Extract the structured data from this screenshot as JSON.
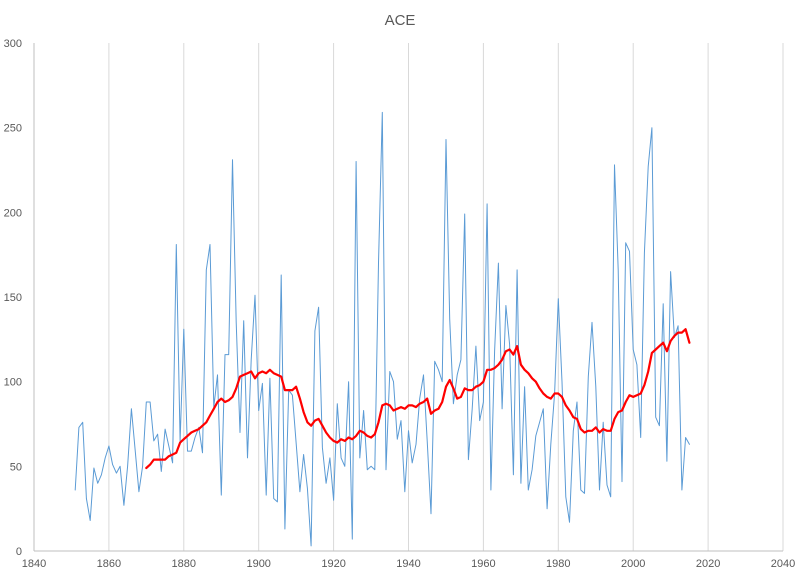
{
  "chart_data": {
    "type": "line",
    "title": "ACE",
    "xlabel": "",
    "ylabel": "",
    "xlim": [
      1840,
      2040
    ],
    "ylim": [
      0,
      300
    ],
    "x_ticks": [
      1840,
      1860,
      1880,
      1900,
      1920,
      1940,
      1960,
      1980,
      2000,
      2020,
      2040
    ],
    "y_ticks": [
      0,
      50,
      100,
      150,
      200,
      250,
      300
    ],
    "grid": "vertical",
    "legend": "none",
    "series": [
      {
        "color": "#5b9bd5",
        "style": "thin",
        "points": [
          [
            1851,
            36
          ],
          [
            1852,
            73
          ],
          [
            1853,
            76
          ],
          [
            1854,
            31
          ],
          [
            1855,
            18
          ],
          [
            1856,
            49
          ],
          [
            1857,
            40
          ],
          [
            1858,
            45
          ],
          [
            1859,
            55
          ],
          [
            1860,
            62
          ],
          [
            1861,
            51
          ],
          [
            1862,
            46
          ],
          [
            1863,
            50
          ],
          [
            1864,
            27
          ],
          [
            1865,
            50
          ],
          [
            1866,
            84
          ],
          [
            1867,
            60
          ],
          [
            1868,
            35
          ],
          [
            1869,
            50
          ],
          [
            1870,
            88
          ],
          [
            1871,
            88
          ],
          [
            1872,
            65
          ],
          [
            1873,
            69
          ],
          [
            1874,
            47
          ],
          [
            1875,
            72
          ],
          [
            1876,
            62
          ],
          [
            1877,
            52
          ],
          [
            1878,
            181
          ],
          [
            1879,
            65
          ],
          [
            1880,
            131
          ],
          [
            1881,
            59
          ],
          [
            1882,
            59
          ],
          [
            1883,
            67
          ],
          [
            1884,
            73
          ],
          [
            1885,
            58
          ],
          [
            1886,
            166
          ],
          [
            1887,
            181
          ],
          [
            1888,
            85
          ],
          [
            1889,
            104
          ],
          [
            1890,
            33
          ],
          [
            1891,
            116
          ],
          [
            1892,
            116
          ],
          [
            1893,
            231
          ],
          [
            1894,
            135
          ],
          [
            1895,
            70
          ],
          [
            1896,
            136
          ],
          [
            1897,
            55
          ],
          [
            1898,
            113
          ],
          [
            1899,
            151
          ],
          [
            1900,
            83
          ],
          [
            1901,
            99
          ],
          [
            1902,
            33
          ],
          [
            1903,
            102
          ],
          [
            1904,
            31
          ],
          [
            1905,
            29
          ],
          [
            1906,
            163
          ],
          [
            1907,
            13
          ],
          [
            1908,
            95
          ],
          [
            1909,
            92
          ],
          [
            1910,
            64
          ],
          [
            1911,
            35
          ],
          [
            1912,
            57
          ],
          [
            1913,
            37
          ],
          [
            1914,
            3
          ],
          [
            1915,
            130
          ],
          [
            1916,
            144
          ],
          [
            1917,
            61
          ],
          [
            1918,
            40
          ],
          [
            1919,
            55
          ],
          [
            1920,
            30
          ],
          [
            1921,
            87
          ],
          [
            1922,
            55
          ],
          [
            1923,
            50
          ],
          [
            1924,
            100
          ],
          [
            1925,
            7
          ],
          [
            1926,
            230
          ],
          [
            1927,
            55
          ],
          [
            1928,
            83
          ],
          [
            1929,
            48
          ],
          [
            1930,
            50
          ],
          [
            1931,
            48
          ],
          [
            1932,
            170
          ],
          [
            1933,
            259
          ],
          [
            1934,
            48
          ],
          [
            1935,
            106
          ],
          [
            1936,
            100
          ],
          [
            1937,
            66
          ],
          [
            1938,
            77
          ],
          [
            1939,
            35
          ],
          [
            1940,
            71
          ],
          [
            1941,
            52
          ],
          [
            1942,
            63
          ],
          [
            1943,
            90
          ],
          [
            1944,
            104
          ],
          [
            1945,
            65
          ],
          [
            1946,
            22
          ],
          [
            1947,
            112
          ],
          [
            1948,
            107
          ],
          [
            1949,
            100
          ],
          [
            1950,
            243
          ],
          [
            1951,
            137
          ],
          [
            1952,
            87
          ],
          [
            1953,
            104
          ],
          [
            1954,
            113
          ],
          [
            1955,
            199
          ],
          [
            1956,
            54
          ],
          [
            1957,
            84
          ],
          [
            1958,
            121
          ],
          [
            1959,
            77
          ],
          [
            1960,
            88
          ],
          [
            1961,
            205
          ],
          [
            1962,
            36
          ],
          [
            1963,
            118
          ],
          [
            1964,
            170
          ],
          [
            1965,
            84
          ],
          [
            1966,
            145
          ],
          [
            1967,
            122
          ],
          [
            1968,
            45
          ],
          [
            1969,
            166
          ],
          [
            1970,
            40
          ],
          [
            1971,
            97
          ],
          [
            1972,
            36
          ],
          [
            1973,
            48
          ],
          [
            1974,
            68
          ],
          [
            1975,
            76
          ],
          [
            1976,
            84
          ],
          [
            1977,
            25
          ],
          [
            1978,
            63
          ],
          [
            1979,
            93
          ],
          [
            1980,
            149
          ],
          [
            1981,
            100
          ],
          [
            1982,
            32
          ],
          [
            1983,
            17
          ],
          [
            1984,
            71
          ],
          [
            1985,
            88
          ],
          [
            1986,
            36
          ],
          [
            1987,
            34
          ],
          [
            1988,
            103
          ],
          [
            1989,
            135
          ],
          [
            1990,
            97
          ],
          [
            1991,
            36
          ],
          [
            1992,
            76
          ],
          [
            1993,
            39
          ],
          [
            1994,
            32
          ],
          [
            1995,
            228
          ],
          [
            1996,
            166
          ],
          [
            1997,
            41
          ],
          [
            1998,
            182
          ],
          [
            1999,
            177
          ],
          [
            2000,
            119
          ],
          [
            2001,
            110
          ],
          [
            2002,
            67
          ],
          [
            2003,
            176
          ],
          [
            2004,
            227
          ],
          [
            2005,
            250
          ],
          [
            2006,
            79
          ],
          [
            2007,
            74
          ],
          [
            2008,
            146
          ],
          [
            2009,
            53
          ],
          [
            2010,
            165
          ],
          [
            2011,
            126
          ],
          [
            2012,
            133
          ],
          [
            2013,
            36
          ],
          [
            2014,
            67
          ],
          [
            2015,
            63
          ]
        ]
      },
      {
        "color": "#ff0000",
        "style": "thick",
        "points": [
          [
            1870,
            49
          ],
          [
            1871,
            51
          ],
          [
            1872,
            54
          ],
          [
            1873,
            54
          ],
          [
            1874,
            54
          ],
          [
            1875,
            54
          ],
          [
            1876,
            56
          ],
          [
            1877,
            57
          ],
          [
            1878,
            58
          ],
          [
            1879,
            64
          ],
          [
            1880,
            66
          ],
          [
            1881,
            68
          ],
          [
            1882,
            70
          ],
          [
            1883,
            71
          ],
          [
            1884,
            72
          ],
          [
            1885,
            74
          ],
          [
            1886,
            76
          ],
          [
            1887,
            80
          ],
          [
            1888,
            84
          ],
          [
            1889,
            88
          ],
          [
            1890,
            90
          ],
          [
            1891,
            88
          ],
          [
            1892,
            89
          ],
          [
            1893,
            91
          ],
          [
            1894,
            96
          ],
          [
            1895,
            103
          ],
          [
            1896,
            104
          ],
          [
            1897,
            105
          ],
          [
            1898,
            106
          ],
          [
            1899,
            102
          ],
          [
            1900,
            105
          ],
          [
            1901,
            106
          ],
          [
            1902,
            105
          ],
          [
            1903,
            107
          ],
          [
            1904,
            105
          ],
          [
            1905,
            104
          ],
          [
            1906,
            103
          ],
          [
            1907,
            95
          ],
          [
            1908,
            95
          ],
          [
            1909,
            95
          ],
          [
            1910,
            97
          ],
          [
            1911,
            90
          ],
          [
            1912,
            82
          ],
          [
            1913,
            76
          ],
          [
            1914,
            74
          ],
          [
            1915,
            77
          ],
          [
            1916,
            78
          ],
          [
            1917,
            74
          ],
          [
            1918,
            70
          ],
          [
            1919,
            67
          ],
          [
            1920,
            65
          ],
          [
            1921,
            64
          ],
          [
            1922,
            66
          ],
          [
            1923,
            65
          ],
          [
            1924,
            67
          ],
          [
            1925,
            66
          ],
          [
            1926,
            68
          ],
          [
            1927,
            71
          ],
          [
            1928,
            70
          ],
          [
            1929,
            68
          ],
          [
            1930,
            67
          ],
          [
            1931,
            69
          ],
          [
            1932,
            76
          ],
          [
            1933,
            86
          ],
          [
            1934,
            87
          ],
          [
            1935,
            86
          ],
          [
            1936,
            83
          ],
          [
            1937,
            84
          ],
          [
            1938,
            85
          ],
          [
            1939,
            84
          ],
          [
            1940,
            86
          ],
          [
            1941,
            86
          ],
          [
            1942,
            85
          ],
          [
            1943,
            87
          ],
          [
            1944,
            88
          ],
          [
            1945,
            90
          ],
          [
            1946,
            81
          ],
          [
            1947,
            83
          ],
          [
            1948,
            84
          ],
          [
            1949,
            88
          ],
          [
            1950,
            97
          ],
          [
            1951,
            101
          ],
          [
            1952,
            96
          ],
          [
            1953,
            90
          ],
          [
            1954,
            91
          ],
          [
            1955,
            96
          ],
          [
            1956,
            95
          ],
          [
            1957,
            95
          ],
          [
            1958,
            97
          ],
          [
            1959,
            98
          ],
          [
            1960,
            100
          ],
          [
            1961,
            107
          ],
          [
            1962,
            107
          ],
          [
            1963,
            108
          ],
          [
            1964,
            110
          ],
          [
            1965,
            113
          ],
          [
            1966,
            118
          ],
          [
            1967,
            119
          ],
          [
            1968,
            116
          ],
          [
            1969,
            121
          ],
          [
            1970,
            110
          ],
          [
            1971,
            107
          ],
          [
            1972,
            105
          ],
          [
            1973,
            102
          ],
          [
            1974,
            100
          ],
          [
            1975,
            96
          ],
          [
            1976,
            93
          ],
          [
            1977,
            91
          ],
          [
            1978,
            90
          ],
          [
            1979,
            93
          ],
          [
            1980,
            93
          ],
          [
            1981,
            91
          ],
          [
            1982,
            86
          ],
          [
            1983,
            83
          ],
          [
            1984,
            79
          ],
          [
            1985,
            78
          ],
          [
            1986,
            72
          ],
          [
            1987,
            70
          ],
          [
            1988,
            71
          ],
          [
            1989,
            71
          ],
          [
            1990,
            73
          ],
          [
            1991,
            70
          ],
          [
            1992,
            72
          ],
          [
            1993,
            71
          ],
          [
            1994,
            71
          ],
          [
            1995,
            78
          ],
          [
            1996,
            82
          ],
          [
            1997,
            83
          ],
          [
            1998,
            88
          ],
          [
            1999,
            92
          ],
          [
            2000,
            91
          ],
          [
            2001,
            92
          ],
          [
            2002,
            93
          ],
          [
            2003,
            98
          ],
          [
            2004,
            106
          ],
          [
            2005,
            117
          ],
          [
            2006,
            119
          ],
          [
            2007,
            121
          ],
          [
            2008,
            123
          ],
          [
            2009,
            118
          ],
          [
            2010,
            124
          ],
          [
            2011,
            127
          ],
          [
            2012,
            129
          ],
          [
            2013,
            129
          ],
          [
            2014,
            131
          ],
          [
            2015,
            123
          ]
        ]
      }
    ]
  }
}
